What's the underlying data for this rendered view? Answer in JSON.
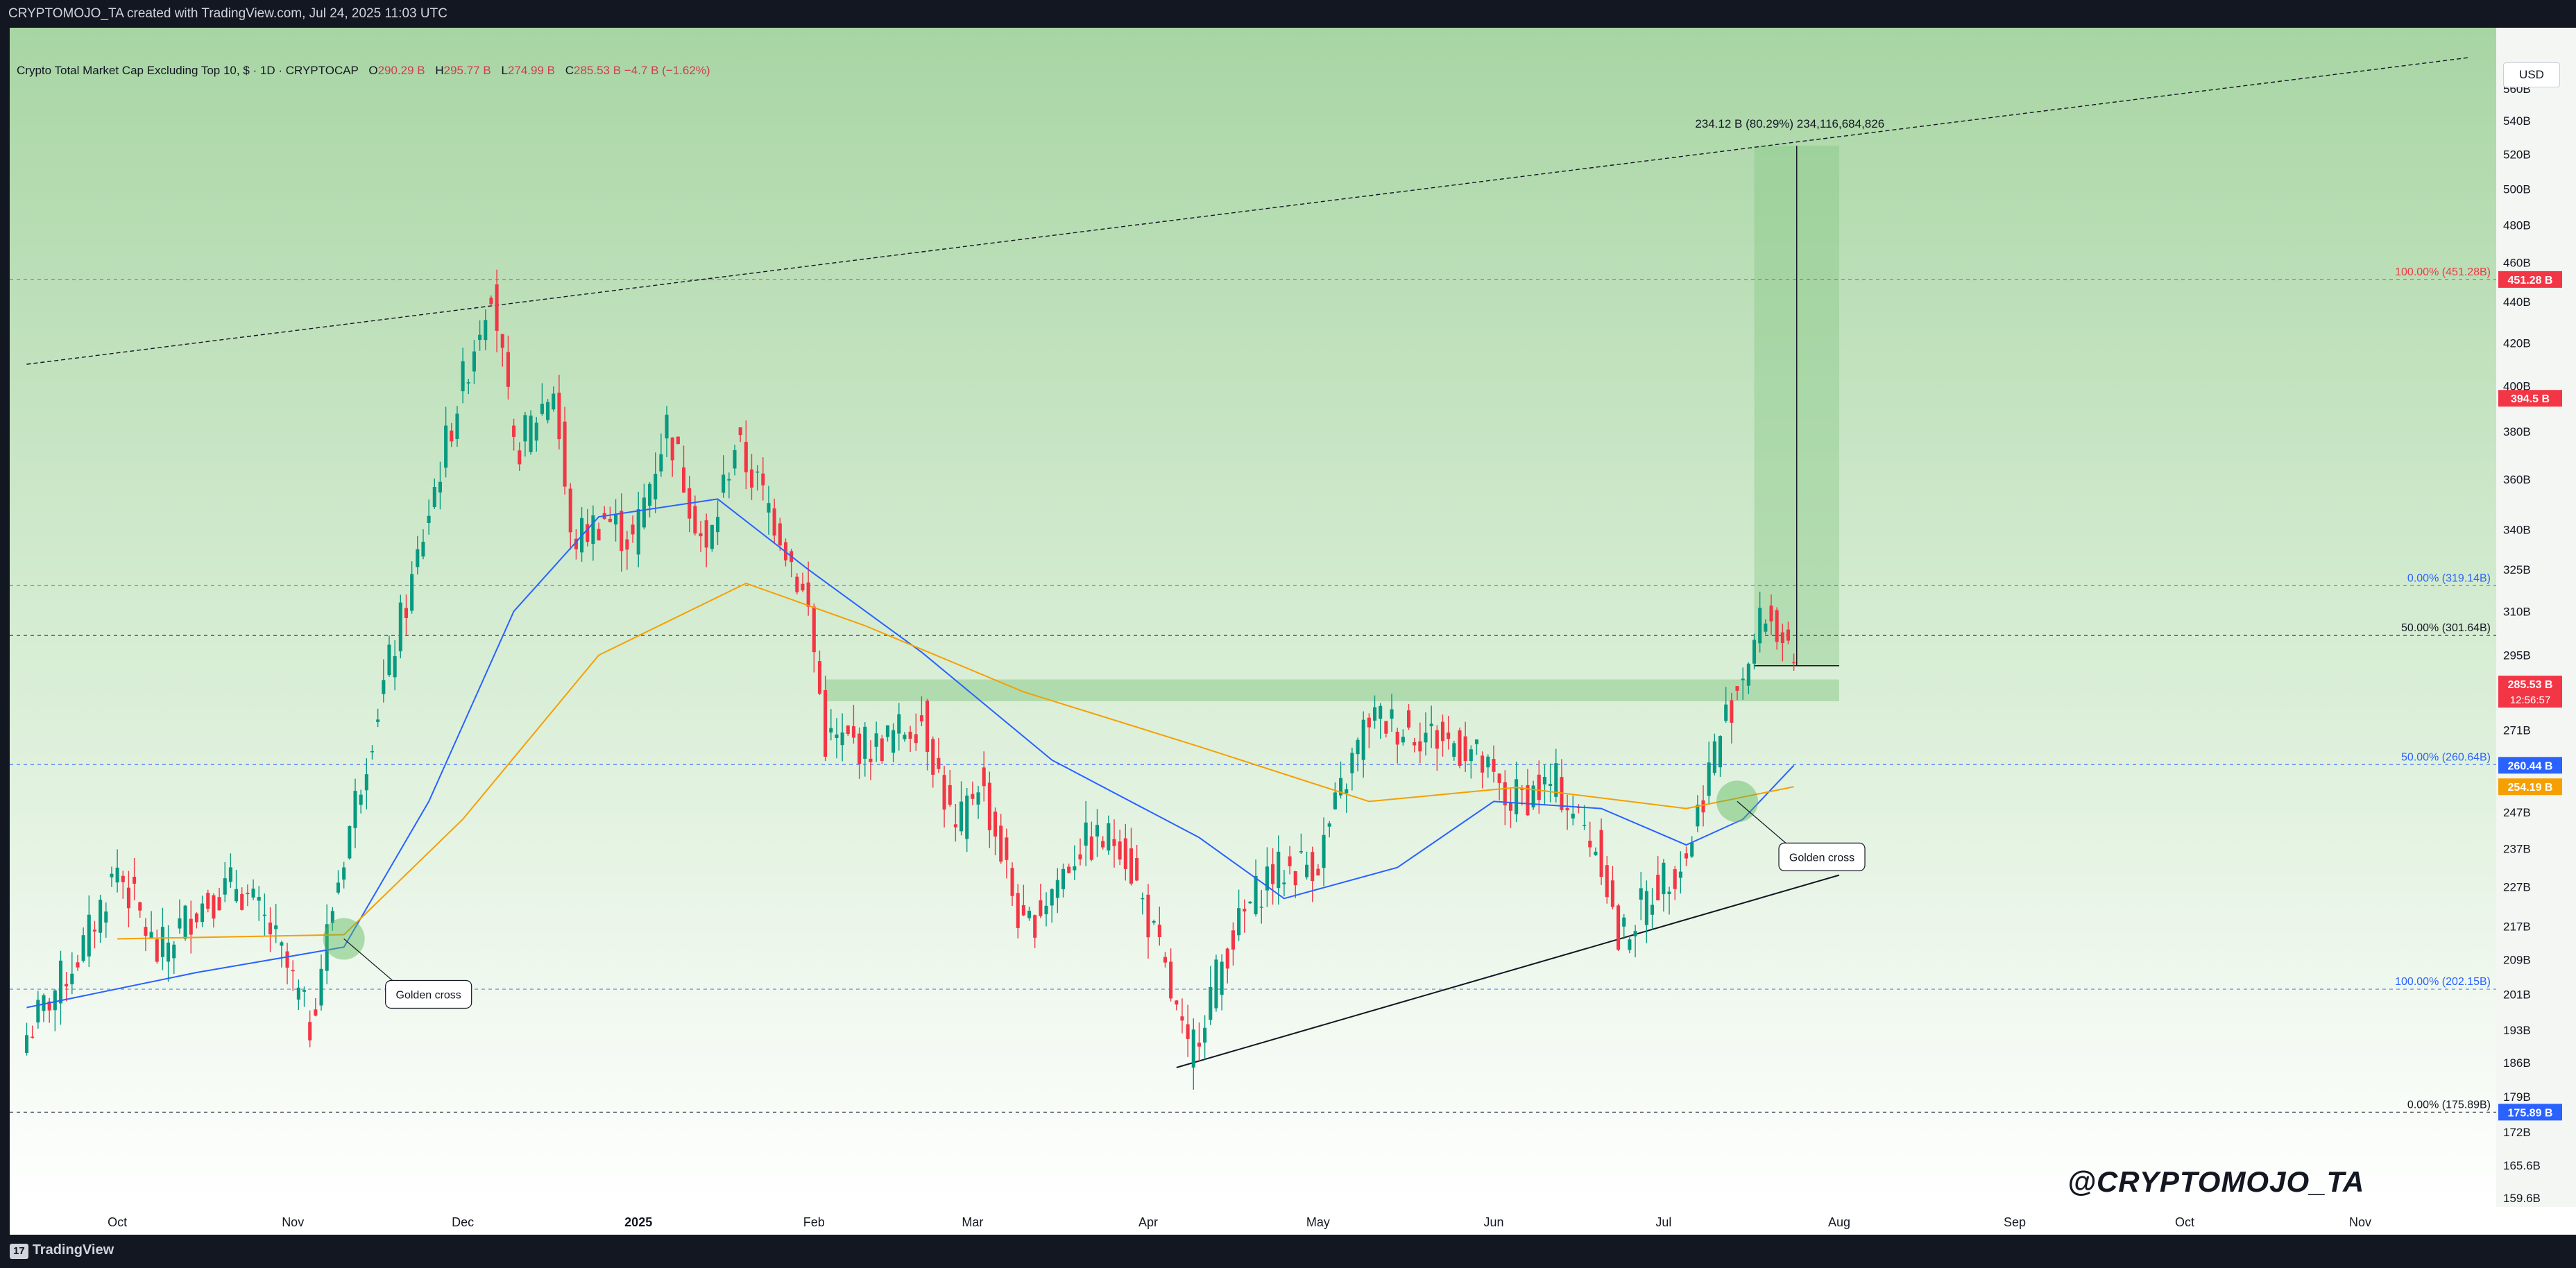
{
  "header": {
    "credit": "CRYPTOMOJO_TA created with TradingView.com, Jul 24, 2025 11:03 UTC"
  },
  "legend": {
    "title": "Crypto Total Market Cap Excluding Top 10, $ · 1D · CRYPTOCAP",
    "o_label": "O",
    "o_value": "290.29 B",
    "h_label": "H",
    "h_value": "295.77 B",
    "l_label": "L",
    "l_value": "274.99 B",
    "c_label": "C",
    "c_value": "285.53 B",
    "change": "−4.7 B (−1.62%)"
  },
  "currency_button": "USD",
  "watermark": "@CRYPTOMOJO_TA",
  "footer": {
    "logo_text": "TradingView",
    "logo_mark": "17"
  },
  "colors": {
    "background_top": "#a8d5a4",
    "background_bottom": "#ffffff",
    "bull": "#089981",
    "bear": "#f23645",
    "ma_fast": "#2962ff",
    "ma_slow": "#f59f00",
    "fib_blue": "#2962ff",
    "fib_red": "#f23645",
    "price_label_bg": "#f23645"
  },
  "chart_data": {
    "type": "candlestick",
    "title": "Crypto Total Market Cap Excluding Top 10, $ · 1D · CRYPTOCAP",
    "y_scale": "log",
    "ylim_billions": [
      158,
      600
    ],
    "y_ticks": [
      {
        "value": 560,
        "label": "560B"
      },
      {
        "value": 540,
        "label": "540B"
      },
      {
        "value": 520,
        "label": "520B"
      },
      {
        "value": 500,
        "label": "500B"
      },
      {
        "value": 480,
        "label": "480B"
      },
      {
        "value": 460,
        "label": "460B"
      },
      {
        "value": 440,
        "label": "440B"
      },
      {
        "value": 420,
        "label": "420B"
      },
      {
        "value": 400,
        "label": "400B"
      },
      {
        "value": 380,
        "label": "380B"
      },
      {
        "value": 360,
        "label": "360B"
      },
      {
        "value": 340,
        "label": "340B"
      },
      {
        "value": 325,
        "label": "325B"
      },
      {
        "value": 310,
        "label": "310B"
      },
      {
        "value": 295,
        "label": "295B"
      },
      {
        "value": 271,
        "label": "271B"
      },
      {
        "value": 247,
        "label": "247B"
      },
      {
        "value": 237,
        "label": "237B"
      },
      {
        "value": 227,
        "label": "227B"
      },
      {
        "value": 217,
        "label": "217B"
      },
      {
        "value": 209,
        "label": "209B"
      },
      {
        "value": 201,
        "label": "201B"
      },
      {
        "value": 193,
        "label": "193B"
      },
      {
        "value": 186,
        "label": "186B"
      },
      {
        "value": 179,
        "label": "179B"
      },
      {
        "value": 172,
        "label": "172B"
      },
      {
        "value": 165.6,
        "label": "165.6B"
      },
      {
        "value": 159.6,
        "label": "159.6B"
      }
    ],
    "x_ticks": [
      {
        "date": "2024-10-01",
        "label": "Oct"
      },
      {
        "date": "2024-11-01",
        "label": "Nov"
      },
      {
        "date": "2024-12-01",
        "label": "Dec"
      },
      {
        "date": "2025-01-01",
        "label": "2025"
      },
      {
        "date": "2025-02-01",
        "label": "Feb"
      },
      {
        "date": "2025-03-01",
        "label": "Mar"
      },
      {
        "date": "2025-04-01",
        "label": "Apr"
      },
      {
        "date": "2025-05-01",
        "label": "May"
      },
      {
        "date": "2025-06-01",
        "label": "Jun"
      },
      {
        "date": "2025-07-01",
        "label": "Jul"
      },
      {
        "date": "2025-08-01",
        "label": "Aug"
      },
      {
        "date": "2025-09-01",
        "label": "Sep"
      },
      {
        "date": "2025-10-01",
        "label": "Oct"
      },
      {
        "date": "2025-11-01",
        "label": "Nov"
      }
    ],
    "price_path": [
      {
        "date": "2024-09-15",
        "close": 192
      },
      {
        "date": "2024-09-25",
        "close": 212
      },
      {
        "date": "2024-10-01",
        "close": 232
      },
      {
        "date": "2024-10-08",
        "close": 210
      },
      {
        "date": "2024-10-15",
        "close": 222
      },
      {
        "date": "2024-10-22",
        "close": 228
      },
      {
        "date": "2024-10-28",
        "close": 216
      },
      {
        "date": "2024-11-04",
        "close": 194
      },
      {
        "date": "2024-11-12",
        "close": 250
      },
      {
        "date": "2024-11-22",
        "close": 320
      },
      {
        "date": "2024-12-03",
        "close": 420
      },
      {
        "date": "2024-12-06",
        "close": 450
      },
      {
        "date": "2024-12-10",
        "close": 370
      },
      {
        "date": "2024-12-17",
        "close": 400
      },
      {
        "date": "2024-12-20",
        "close": 335
      },
      {
        "date": "2024-12-26",
        "close": 345
      },
      {
        "date": "2024-12-31",
        "close": 335
      },
      {
        "date": "2025-01-06",
        "close": 383
      },
      {
        "date": "2025-01-13",
        "close": 330
      },
      {
        "date": "2025-01-18",
        "close": 375
      },
      {
        "date": "2025-01-26",
        "close": 340
      },
      {
        "date": "2025-01-31",
        "close": 310
      },
      {
        "date": "2025-02-03",
        "close": 268
      },
      {
        "date": "2025-02-12",
        "close": 266
      },
      {
        "date": "2025-02-20",
        "close": 275
      },
      {
        "date": "2025-02-26",
        "close": 240
      },
      {
        "date": "2025-03-02",
        "close": 257
      },
      {
        "date": "2025-03-10",
        "close": 215
      },
      {
        "date": "2025-03-20",
        "close": 238
      },
      {
        "date": "2025-03-27",
        "close": 240
      },
      {
        "date": "2025-04-03",
        "close": 210
      },
      {
        "date": "2025-04-08",
        "close": 187
      },
      {
        "date": "2025-04-15",
        "close": 212
      },
      {
        "date": "2025-04-22",
        "close": 230
      },
      {
        "date": "2025-05-01",
        "close": 234
      },
      {
        "date": "2025-05-10",
        "close": 275
      },
      {
        "date": "2025-05-20",
        "close": 270
      },
      {
        "date": "2025-05-28",
        "close": 265
      },
      {
        "date": "2025-06-03",
        "close": 250
      },
      {
        "date": "2025-06-12",
        "close": 255
      },
      {
        "date": "2025-06-20",
        "close": 235
      },
      {
        "date": "2025-06-23",
        "close": 213
      },
      {
        "date": "2025-06-30",
        "close": 228
      },
      {
        "date": "2025-07-05",
        "close": 235
      },
      {
        "date": "2025-07-10",
        "close": 265
      },
      {
        "date": "2025-07-15",
        "close": 290
      },
      {
        "date": "2025-07-19",
        "close": 310
      },
      {
        "date": "2025-07-22",
        "close": 300
      },
      {
        "date": "2025-07-24",
        "close": 285.53
      }
    ],
    "ma_fast": [
      {
        "date": "2024-09-15",
        "value": 198
      },
      {
        "date": "2024-10-15",
        "value": 206
      },
      {
        "date": "2024-11-10",
        "value": 212
      },
      {
        "date": "2024-11-25",
        "value": 250
      },
      {
        "date": "2024-12-10",
        "value": 310
      },
      {
        "date": "2024-12-25",
        "value": 345
      },
      {
        "date": "2025-01-15",
        "value": 352
      },
      {
        "date": "2025-01-31",
        "value": 325
      },
      {
        "date": "2025-02-20",
        "value": 296
      },
      {
        "date": "2025-03-15",
        "value": 262
      },
      {
        "date": "2025-04-10",
        "value": 240
      },
      {
        "date": "2025-04-25",
        "value": 224
      },
      {
        "date": "2025-05-15",
        "value": 232
      },
      {
        "date": "2025-06-01",
        "value": 250
      },
      {
        "date": "2025-06-20",
        "value": 248
      },
      {
        "date": "2025-07-05",
        "value": 238
      },
      {
        "date": "2025-07-15",
        "value": 245
      },
      {
        "date": "2025-07-24",
        "value": 260.44
      }
    ],
    "ma_slow": [
      {
        "date": "2024-10-01",
        "value": 214
      },
      {
        "date": "2024-11-10",
        "value": 215
      },
      {
        "date": "2024-12-01",
        "value": 245
      },
      {
        "date": "2024-12-25",
        "value": 295
      },
      {
        "date": "2025-01-20",
        "value": 320
      },
      {
        "date": "2025-02-10",
        "value": 305
      },
      {
        "date": "2025-03-10",
        "value": 283
      },
      {
        "date": "2025-04-10",
        "value": 266
      },
      {
        "date": "2025-05-10",
        "value": 250
      },
      {
        "date": "2025-06-05",
        "value": 254
      },
      {
        "date": "2025-07-05",
        "value": 248
      },
      {
        "date": "2025-07-24",
        "value": 254.19
      }
    ],
    "price_labels": [
      {
        "value": 451.28,
        "label": "451.28 B",
        "color": "#f23645"
      },
      {
        "value": 394.5,
        "label": "394.5 B",
        "color": "#f23645"
      },
      {
        "value": 285.53,
        "label": "285.53 B",
        "sub": "12:56:57",
        "color": "#f23645"
      },
      {
        "value": 260.44,
        "label": "260.44 B",
        "color": "#2962ff"
      },
      {
        "value": 254.19,
        "label": "254.19 B",
        "color": "#f59f00"
      },
      {
        "value": 175.89,
        "label": "175.89 B",
        "color": "#2962ff"
      }
    ],
    "fib_levels": [
      {
        "value": 451.28,
        "label": "100.00% (451.28B)",
        "color": "#f23645"
      },
      {
        "value": 319.14,
        "label": "0.00% (319.14B)",
        "color": "#2962ff"
      },
      {
        "value": 301.64,
        "label": "50.00% (301.64B)",
        "color": "#131722"
      },
      {
        "value": 260.64,
        "label": "50.00% (260.64B)",
        "color": "#2962ff"
      },
      {
        "value": 202.15,
        "label": "100.00% (202.15B)",
        "color": "#2962ff"
      },
      {
        "value": 175.89,
        "label": "0.00% (175.89B)",
        "color": "#131722"
      }
    ],
    "measure": {
      "label": "234.12 B (80.29%) 234,116,684,826",
      "from_value": 291.5,
      "to_value": 525,
      "date_from": "2025-07-17",
      "date_to": "2025-08-01"
    },
    "annotations": [
      {
        "text": "Golden cross",
        "date": "2024-11-10",
        "value": 214
      },
      {
        "text": "Golden cross",
        "date": "2025-07-14",
        "value": 250
      }
    ],
    "trendlines": [
      {
        "style": "dashed",
        "from": {
          "date": "2024-09-15",
          "value": 410
        },
        "to": {
          "date": "2025-11-20",
          "value": 580
        }
      },
      {
        "style": "solid",
        "from": {
          "date": "2025-04-06",
          "value": 185
        },
        "to": {
          "date": "2025-08-01",
          "value": 230
        }
      }
    ]
  }
}
